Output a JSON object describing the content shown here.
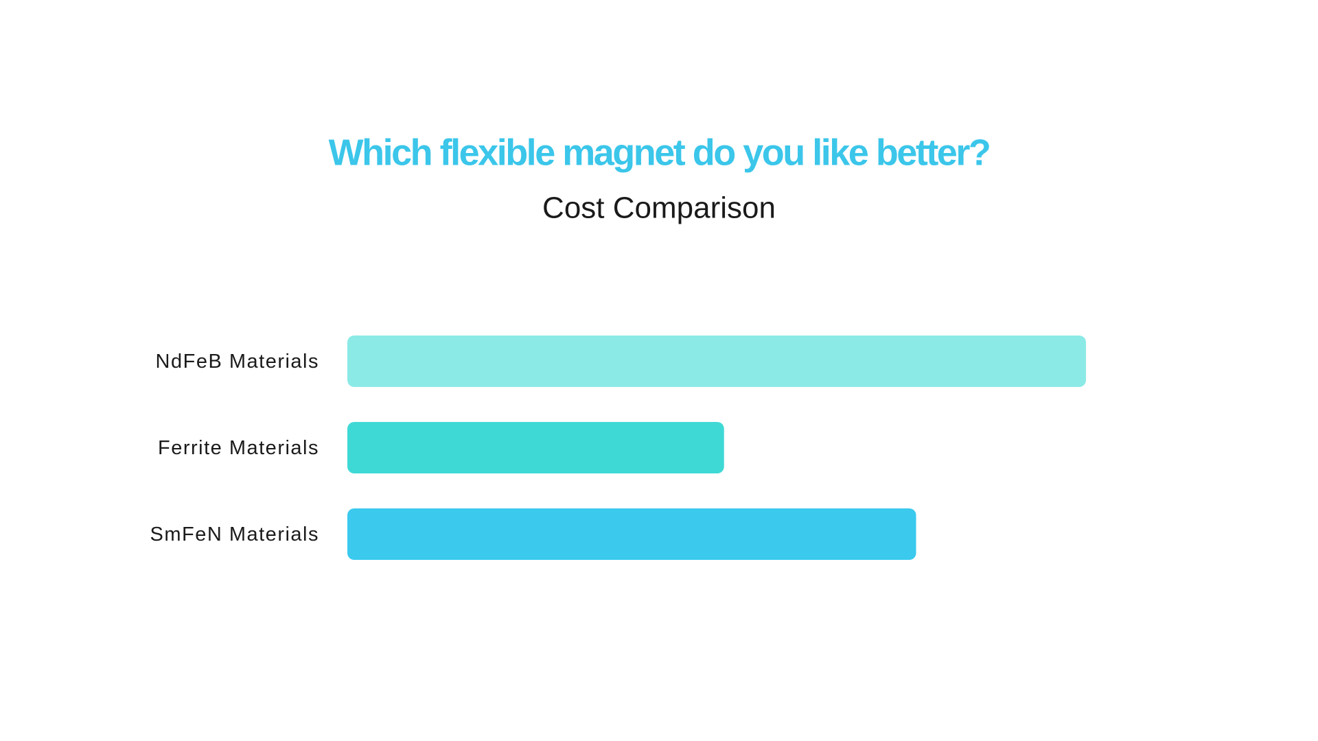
{
  "chart_data": {
    "type": "barh",
    "title": "Which flexible magnet do you like better?",
    "subtitle": "Cost Comparison",
    "categories": [
      "NdFeB Materials",
      "Ferrite Materials",
      "SmFeN Materials"
    ],
    "values": [
      100,
      51,
      77
    ],
    "colors": [
      "#8beae6",
      "#3fd9d5",
      "#3bc9ee"
    ],
    "xlim": [
      0,
      100
    ]
  }
}
